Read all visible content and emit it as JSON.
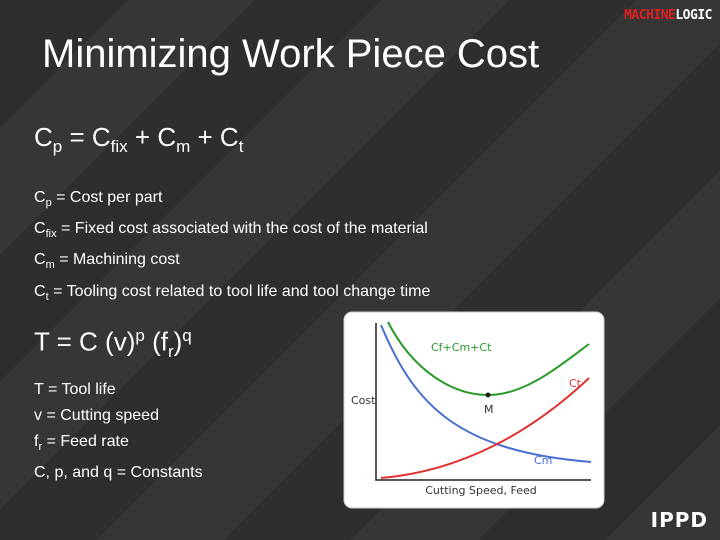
{
  "logo": {
    "part1": "MACHINE",
    "part2": "LOGIC"
  },
  "title": "Minimizing Work Piece Cost",
  "formula1": [
    "C",
    "p",
    "= C",
    "fix",
    "+ C",
    "m",
    "+ C",
    "t"
  ],
  "definitions1": [
    {
      "symbol": "C",
      "sub": "p",
      "text": "= Cost per part"
    },
    {
      "symbol": "C",
      "sub": "fix",
      "text": "= Fixed cost associated with the cost of the material"
    },
    {
      "symbol": "C",
      "sub": "m",
      "text": "= Machining cost"
    },
    {
      "symbol": "C",
      "sub": "t",
      "text": "= Tooling cost related to tool life and tool change time"
    }
  ],
  "formula2": [
    "T = C (v)",
    "p",
    "(f",
    "r",
    ")",
    "q"
  ],
  "definitions2": [
    {
      "symbol": "T",
      "text": "= Tool life"
    },
    {
      "symbol": "v",
      "text": "= Cutting speed"
    },
    {
      "symbol": "f",
      "sub": "r",
      "text": "= Feed rate"
    },
    {
      "symbol": "C, p, and q",
      "text": "= Constants"
    }
  ],
  "diagram": {
    "y_axis": "Cost",
    "x_axis": "Cutting Speed, Feed",
    "total_curve": "Cf+Cm+Ct",
    "tooling_curve": "Ct",
    "machining_curve": "Cm",
    "minimum": "M"
  },
  "footer_logo": "IPPD"
}
